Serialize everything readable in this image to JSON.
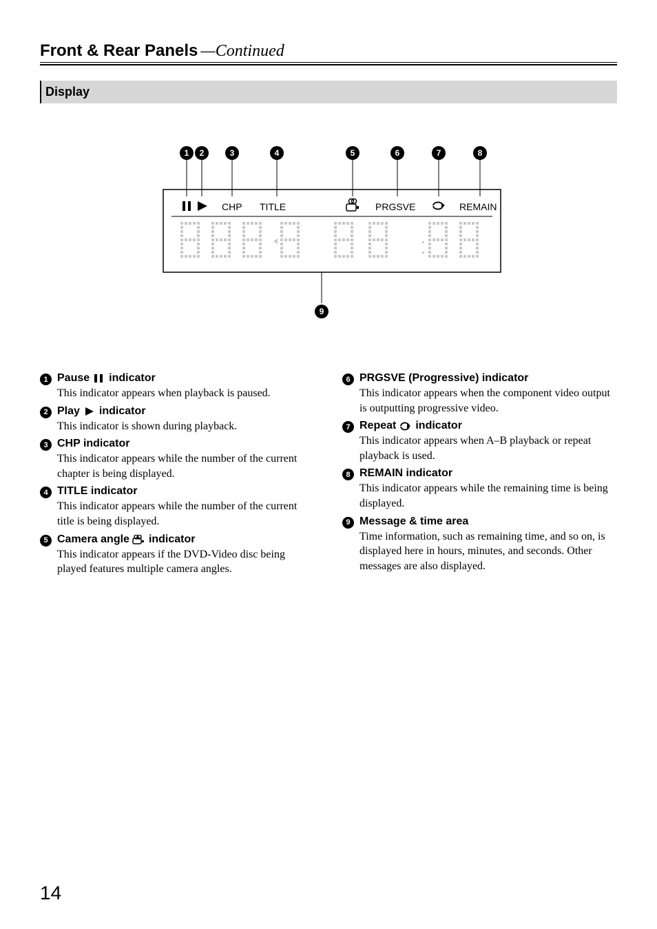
{
  "header": {
    "title": "Front & Rear Panels",
    "suffix": "—Continued"
  },
  "section": {
    "title": "Display"
  },
  "diagram": {
    "callouts": [
      1,
      2,
      3,
      4,
      5,
      6,
      7,
      8
    ],
    "labels": {
      "chp": "CHP",
      "title": "TITLE",
      "prgsve": "PRGSVE",
      "remain": "REMAIN"
    },
    "bottom_callout": 9
  },
  "left_items": [
    {
      "n": 1,
      "title_pre": "Pause ",
      "icon": "pause",
      "title_post": " indicator",
      "desc": "This indicator appears when playback is paused."
    },
    {
      "n": 2,
      "title_pre": "Play ",
      "icon": "play",
      "title_post": " indicator",
      "desc": "This indicator is shown during playback."
    },
    {
      "n": 3,
      "title_pre": "CHP indicator",
      "icon": null,
      "title_post": "",
      "desc": "This indicator appears while the number of the current chapter is being displayed."
    },
    {
      "n": 4,
      "title_pre": "TITLE indicator",
      "icon": null,
      "title_post": "",
      "desc": "This indicator appears while the number of the current title is being displayed."
    },
    {
      "n": 5,
      "title_pre": "Camera angle ",
      "icon": "camera",
      "title_post": " indicator",
      "desc": "This indicator appears if the DVD-Video disc being played features multiple camera angles."
    }
  ],
  "right_items": [
    {
      "n": 6,
      "title_pre": "PRGSVE (Progressive) indicator",
      "icon": null,
      "title_post": "",
      "desc": "This indicator appears when the component video output is outputting progressive video."
    },
    {
      "n": 7,
      "title_pre": "Repeat ",
      "icon": "repeat",
      "title_post": " indicator",
      "desc": "This indicator appears when A–B playback or repeat playback is used."
    },
    {
      "n": 8,
      "title_pre": "REMAIN indicator",
      "icon": null,
      "title_post": "",
      "desc": "This indicator appears while the remaining time is being displayed."
    },
    {
      "n": 9,
      "title_pre": "Message & time area",
      "icon": null,
      "title_post": "",
      "desc": "Time information, such as remaining time, and so on, is displayed here in hours, minutes, and seconds. Other messages are also displayed."
    }
  ],
  "page_number": "14",
  "style": {
    "band_bg": "#d6d6d6",
    "text_color": "#000000",
    "page_bg": "#ffffff",
    "body_fontsize": 16,
    "title_fontsize": 24
  }
}
